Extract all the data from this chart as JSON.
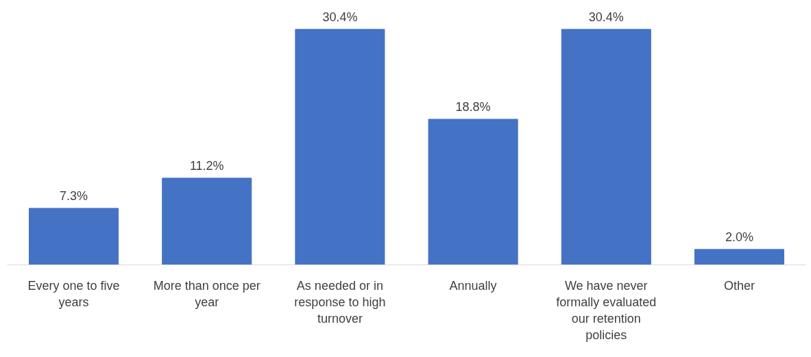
{
  "chart_data": {
    "type": "bar",
    "categories": [
      "Every one to five years",
      "More than once per year",
      "As needed or in response to high turnover",
      "Annually",
      "We have never formally evaluated our retention policies",
      "Other"
    ],
    "values": [
      7.3,
      11.2,
      30.4,
      18.8,
      30.4,
      2.0
    ],
    "value_labels": [
      "7.3%",
      "11.2%",
      "30.4%",
      "18.8%",
      "30.4%",
      "2.0%"
    ],
    "color": "#4472c4",
    "grid": false,
    "tick_labels": "x"
  }
}
